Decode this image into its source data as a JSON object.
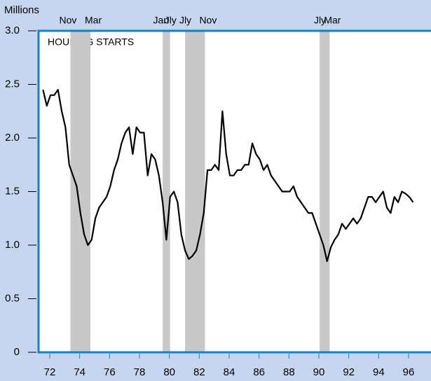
{
  "chart_data": {
    "type": "line",
    "y_label": "Millions",
    "annotation": "HOUSING STARTS",
    "x": [
      1972,
      1972.25,
      1972.5,
      1972.75,
      1973,
      1973.25,
      1973.5,
      1973.75,
      1974,
      1974.25,
      1974.5,
      1974.75,
      1975,
      1975.25,
      1975.5,
      1975.75,
      1976,
      1976.25,
      1976.5,
      1976.75,
      1977,
      1977.25,
      1977.5,
      1977.75,
      1978,
      1978.25,
      1978.5,
      1978.75,
      1979,
      1979.25,
      1979.5,
      1979.75,
      1980,
      1980.25,
      1980.5,
      1980.75,
      1981,
      1981.25,
      1981.5,
      1981.75,
      1982,
      1982.25,
      1982.5,
      1982.75,
      1983,
      1983.25,
      1983.5,
      1983.75,
      1984,
      1984.25,
      1984.5,
      1984.75,
      1985,
      1985.25,
      1985.5,
      1985.75,
      1986,
      1986.25,
      1986.5,
      1986.75,
      1987,
      1987.25,
      1987.5,
      1987.75,
      1988,
      1988.25,
      1988.5,
      1988.75,
      1989,
      1989.25,
      1989.5,
      1989.75,
      1990,
      1990.25,
      1990.5,
      1990.75,
      1991,
      1991.25,
      1991.5,
      1991.75,
      1992,
      1992.25,
      1992.5,
      1992.75,
      1993,
      1993.25,
      1993.5,
      1993.75,
      1994,
      1994.25,
      1994.5,
      1994.75,
      1995,
      1995.25,
      1995.5,
      1995.75,
      1996,
      1996.25,
      1996.5,
      1996.75
    ],
    "series": [
      {
        "name": "Housing starts",
        "color": "#000000",
        "values": [
          2.45,
          2.3,
          2.4,
          2.4,
          2.45,
          2.25,
          2.1,
          1.75,
          1.65,
          1.55,
          1.3,
          1.1,
          1.0,
          1.05,
          1.25,
          1.35,
          1.4,
          1.45,
          1.55,
          1.7,
          1.8,
          1.95,
          2.05,
          2.1,
          1.85,
          2.1,
          2.05,
          2.05,
          1.65,
          1.85,
          1.8,
          1.65,
          1.4,
          1.05,
          1.45,
          1.5,
          1.4,
          1.1,
          0.95,
          0.87,
          0.9,
          0.95,
          1.1,
          1.3,
          1.7,
          1.7,
          1.75,
          1.7,
          2.25,
          1.85,
          1.65,
          1.65,
          1.7,
          1.7,
          1.75,
          1.75,
          1.95,
          1.85,
          1.8,
          1.7,
          1.75,
          1.65,
          1.6,
          1.55,
          1.5,
          1.5,
          1.5,
          1.55,
          1.45,
          1.4,
          1.35,
          1.3,
          1.3,
          1.2,
          1.1,
          1.0,
          0.85,
          0.98,
          1.05,
          1.1,
          1.2,
          1.15,
          1.2,
          1.25,
          1.2,
          1.25,
          1.35,
          1.45,
          1.45,
          1.4,
          1.45,
          1.5,
          1.35,
          1.3,
          1.45,
          1.4,
          1.5,
          1.48,
          1.45,
          1.4
        ]
      }
    ],
    "recessions": [
      {
        "start": 1973.83,
        "end": 1975.17,
        "start_label": "Nov",
        "end_label": "Mar"
      },
      {
        "start": 1980.0,
        "end": 1980.5,
        "start_label": "Jan",
        "end_label": "Jly"
      },
      {
        "start": 1981.5,
        "end": 1982.83,
        "start_label": "Jly",
        "end_label": "Nov"
      },
      {
        "start": 1990.5,
        "end": 1991.17,
        "start_label": "Jly",
        "end_label": "Mar"
      }
    ],
    "xlim": [
      1971.7,
      1997.95
    ],
    "xticks": [
      {
        "value": 1972.45,
        "label": "72"
      },
      {
        "value": 1974.45,
        "label": "74"
      },
      {
        "value": 1976.45,
        "label": "76"
      },
      {
        "value": 1978.45,
        "label": "78"
      },
      {
        "value": 1980.45,
        "label": "80"
      },
      {
        "value": 1982.45,
        "label": "82"
      },
      {
        "value": 1984.45,
        "label": "84"
      },
      {
        "value": 1986.45,
        "label": "86"
      },
      {
        "value": 1988.45,
        "label": "88"
      },
      {
        "value": 1990.45,
        "label": "90"
      },
      {
        "value": 1992.45,
        "label": "92"
      },
      {
        "value": 1994.45,
        "label": "94"
      },
      {
        "value": 1996.45,
        "label": "96"
      }
    ],
    "ylim": [
      0,
      3
    ],
    "yticks": [
      0,
      {
        "value": 0.5,
        "label": "0.5"
      },
      {
        "value": 1,
        "label": "1.0"
      },
      1.5,
      {
        "value": 2,
        "label": "2.0"
      },
      2.5,
      {
        "value": 3,
        "label": "3.0"
      }
    ]
  }
}
